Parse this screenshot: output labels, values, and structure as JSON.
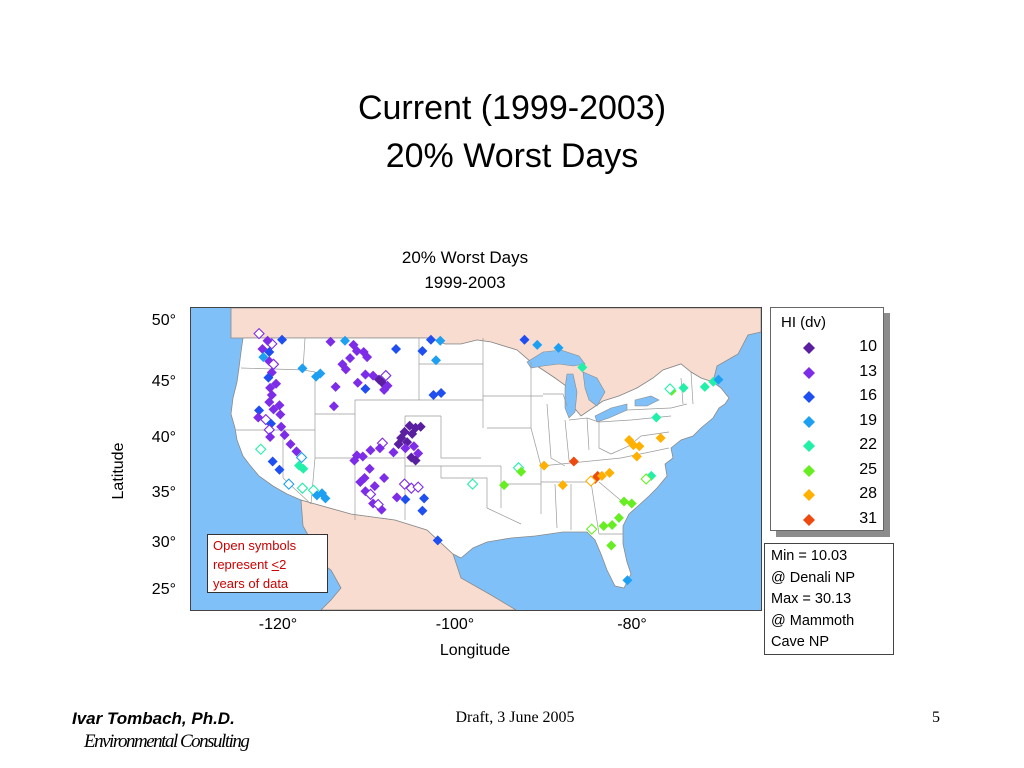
{
  "slide": {
    "title_line1": "Current (1999-2003)",
    "title_line2": "20% Worst Days"
  },
  "chart_data": {
    "type": "scatter",
    "title": "20% Worst Days",
    "subtitle": "1999-2003",
    "xlabel": "Longitude",
    "ylabel": "Latitude",
    "xlim": [
      -132,
      -65
    ],
    "ylim": [
      22.5,
      52
    ],
    "x_ticks": [
      {
        "value": -120,
        "label": "-120°"
      },
      {
        "value": -100,
        "label": "-100°"
      },
      {
        "value": -80,
        "label": "-80°"
      }
    ],
    "y_ticks": [
      {
        "value": 50,
        "label": "50°"
      },
      {
        "value": 45,
        "label": "45°"
      },
      {
        "value": 40,
        "label": "40°"
      },
      {
        "value": 35,
        "label": "35°"
      },
      {
        "value": 30,
        "label": "30°"
      },
      {
        "value": 25,
        "label": "25°"
      }
    ],
    "legend": {
      "title": "HI (dv)",
      "placement": "right",
      "bins": [
        {
          "label": "10",
          "value": 10,
          "color": "#5a1fa0"
        },
        {
          "label": "13",
          "value": 13,
          "color": "#7d2ce8"
        },
        {
          "label": "16",
          "value": 16,
          "color": "#1f4ff0"
        },
        {
          "label": "19",
          "value": 19,
          "color": "#1ea0f2"
        },
        {
          "label": "22",
          "value": 22,
          "color": "#22f0a8"
        },
        {
          "label": "25",
          "value": 25,
          "color": "#66ee22"
        },
        {
          "label": "28",
          "value": 28,
          "color": "#ffb000"
        },
        {
          "label": "31",
          "value": 31,
          "color": "#ee4a10"
        }
      ]
    },
    "points": [
      {
        "lon": -124.0,
        "lat": 49.5,
        "hi": 13,
        "open": true
      },
      {
        "lon": -122.5,
        "lat": 48.5,
        "hi": 13,
        "open": true
      },
      {
        "lon": -121.3,
        "lat": 48.9,
        "hi": 16
      },
      {
        "lon": -123.0,
        "lat": 48.8,
        "hi": 13
      },
      {
        "lon": -123.6,
        "lat": 48.0,
        "hi": 13
      },
      {
        "lon": -122.8,
        "lat": 47.7,
        "hi": 16
      },
      {
        "lon": -123.5,
        "lat": 47.2,
        "hi": 19
      },
      {
        "lon": -122.8,
        "lat": 46.8,
        "hi": 13
      },
      {
        "lon": -122.3,
        "lat": 46.5,
        "hi": 13,
        "open": true
      },
      {
        "lon": -122.5,
        "lat": 45.7,
        "hi": 13
      },
      {
        "lon": -122.9,
        "lat": 45.2,
        "hi": 16
      },
      {
        "lon": -122.0,
        "lat": 44.6,
        "hi": 13
      },
      {
        "lon": -122.7,
        "lat": 44.2,
        "hi": 13
      },
      {
        "lon": -122.5,
        "lat": 43.5,
        "hi": 13
      },
      {
        "lon": -122.8,
        "lat": 42.8,
        "hi": 13
      },
      {
        "lon": -121.6,
        "lat": 42.5,
        "hi": 13
      },
      {
        "lon": -122.3,
        "lat": 42.1,
        "hi": 13
      },
      {
        "lon": -121.5,
        "lat": 41.6,
        "hi": 13
      },
      {
        "lon": -124.0,
        "lat": 42.0,
        "hi": 16
      },
      {
        "lon": -124.1,
        "lat": 41.3,
        "hi": 13
      },
      {
        "lon": -123.2,
        "lat": 41.1,
        "hi": 13,
        "open": true
      },
      {
        "lon": -122.6,
        "lat": 40.7,
        "hi": 16
      },
      {
        "lon": -122.8,
        "lat": 40.1,
        "hi": 13,
        "open": true
      },
      {
        "lon": -121.4,
        "lat": 40.4,
        "hi": 13
      },
      {
        "lon": -122.7,
        "lat": 39.4,
        "hi": 13
      },
      {
        "lon": -121.0,
        "lat": 39.6,
        "hi": 13
      },
      {
        "lon": -120.3,
        "lat": 38.7,
        "hi": 13
      },
      {
        "lon": -119.6,
        "lat": 38.0,
        "hi": 13
      },
      {
        "lon": -119.0,
        "lat": 37.4,
        "hi": 19,
        "open": true
      },
      {
        "lon": -123.8,
        "lat": 38.2,
        "hi": 22,
        "open": true
      },
      {
        "lon": -122.4,
        "lat": 37.0,
        "hi": 16
      },
      {
        "lon": -121.6,
        "lat": 36.2,
        "hi": 16
      },
      {
        "lon": -119.3,
        "lat": 36.6,
        "hi": 22
      },
      {
        "lon": -118.8,
        "lat": 36.3,
        "hi": 22
      },
      {
        "lon": -120.5,
        "lat": 34.8,
        "hi": 19,
        "open": true
      },
      {
        "lon": -118.9,
        "lat": 34.4,
        "hi": 22,
        "open": true
      },
      {
        "lon": -117.6,
        "lat": 34.2,
        "hi": 22,
        "open": true
      },
      {
        "lon": -117.2,
        "lat": 33.7,
        "hi": 19
      },
      {
        "lon": -116.6,
        "lat": 33.9,
        "hi": 19
      },
      {
        "lon": -116.2,
        "lat": 33.4,
        "hi": 19
      },
      {
        "lon": -118.9,
        "lat": 46.1,
        "hi": 19
      },
      {
        "lon": -117.3,
        "lat": 45.3,
        "hi": 19
      },
      {
        "lon": -116.8,
        "lat": 45.6,
        "hi": 19
      },
      {
        "lon": -115.6,
        "lat": 48.7,
        "hi": 13
      },
      {
        "lon": -113.9,
        "lat": 48.8,
        "hi": 19
      },
      {
        "lon": -112.9,
        "lat": 48.4,
        "hi": 13
      },
      {
        "lon": -112.5,
        "lat": 47.8,
        "hi": 13
      },
      {
        "lon": -111.7,
        "lat": 47.7,
        "hi": 13
      },
      {
        "lon": -113.3,
        "lat": 47.1,
        "hi": 13
      },
      {
        "lon": -111.3,
        "lat": 47.2,
        "hi": 13
      },
      {
        "lon": -114.2,
        "lat": 46.5,
        "hi": 13
      },
      {
        "lon": -113.8,
        "lat": 46.0,
        "hi": 13
      },
      {
        "lon": -111.5,
        "lat": 45.5,
        "hi": 13
      },
      {
        "lon": -110.6,
        "lat": 45.4,
        "hi": 13
      },
      {
        "lon": -109.9,
        "lat": 45.0,
        "hi": 10
      },
      {
        "lon": -109.5,
        "lat": 44.7,
        "hi": 10
      },
      {
        "lon": -109.1,
        "lat": 45.4,
        "hi": 13,
        "open": true
      },
      {
        "lon": -108.9,
        "lat": 44.4,
        "hi": 13
      },
      {
        "lon": -109.3,
        "lat": 44.0,
        "hi": 13
      },
      {
        "lon": -112.4,
        "lat": 44.7,
        "hi": 13
      },
      {
        "lon": -111.5,
        "lat": 44.1,
        "hi": 16
      },
      {
        "lon": -115.0,
        "lat": 44.3,
        "hi": 13
      },
      {
        "lon": -115.2,
        "lat": 42.4,
        "hi": 13
      },
      {
        "lon": -103.8,
        "lat": 48.9,
        "hi": 16
      },
      {
        "lon": -102.7,
        "lat": 48.8,
        "hi": 19
      },
      {
        "lon": -104.8,
        "lat": 47.8,
        "hi": 16
      },
      {
        "lon": -107.9,
        "lat": 48.0,
        "hi": 16
      },
      {
        "lon": -103.2,
        "lat": 46.9,
        "hi": 19
      },
      {
        "lon": -103.5,
        "lat": 43.5,
        "hi": 16
      },
      {
        "lon": -102.6,
        "lat": 43.7,
        "hi": 16
      },
      {
        "lon": -106.3,
        "lat": 40.5,
        "hi": 10
      },
      {
        "lon": -105.6,
        "lat": 40.3,
        "hi": 10
      },
      {
        "lon": -105.0,
        "lat": 40.4,
        "hi": 10
      },
      {
        "lon": -106.9,
        "lat": 39.9,
        "hi": 10
      },
      {
        "lon": -106.0,
        "lat": 39.7,
        "hi": 10
      },
      {
        "lon": -107.3,
        "lat": 39.3,
        "hi": 10
      },
      {
        "lon": -106.6,
        "lat": 38.9,
        "hi": 10
      },
      {
        "lon": -107.6,
        "lat": 38.7,
        "hi": 10
      },
      {
        "lon": -105.8,
        "lat": 38.5,
        "hi": 13
      },
      {
        "lon": -106.8,
        "lat": 38.3,
        "hi": 13
      },
      {
        "lon": -105.3,
        "lat": 37.8,
        "hi": 13
      },
      {
        "lon": -108.2,
        "lat": 37.9,
        "hi": 13
      },
      {
        "lon": -106.1,
        "lat": 37.4,
        "hi": 10
      },
      {
        "lon": -105.6,
        "lat": 37.1,
        "hi": 10
      },
      {
        "lon": -109.5,
        "lat": 38.8,
        "hi": 13,
        "open": true
      },
      {
        "lon": -109.8,
        "lat": 38.3,
        "hi": 13
      },
      {
        "lon": -110.9,
        "lat": 38.1,
        "hi": 13
      },
      {
        "lon": -111.8,
        "lat": 37.5,
        "hi": 13
      },
      {
        "lon": -112.5,
        "lat": 37.6,
        "hi": 13
      },
      {
        "lon": -112.8,
        "lat": 37.1,
        "hi": 13
      },
      {
        "lon": -111.0,
        "lat": 36.3,
        "hi": 13
      },
      {
        "lon": -111.6,
        "lat": 35.4,
        "hi": 13
      },
      {
        "lon": -112.1,
        "lat": 35.0,
        "hi": 13
      },
      {
        "lon": -110.4,
        "lat": 34.6,
        "hi": 13
      },
      {
        "lon": -109.3,
        "lat": 35.4,
        "hi": 13
      },
      {
        "lon": -111.5,
        "lat": 34.1,
        "hi": 13
      },
      {
        "lon": -110.9,
        "lat": 33.8,
        "hi": 13,
        "open": true
      },
      {
        "lon": -110.6,
        "lat": 32.9,
        "hi": 13
      },
      {
        "lon": -109.6,
        "lat": 32.3,
        "hi": 13
      },
      {
        "lon": -110.0,
        "lat": 32.8,
        "hi": 13,
        "open": true
      },
      {
        "lon": -107.8,
        "lat": 33.5,
        "hi": 13
      },
      {
        "lon": -106.8,
        "lat": 33.3,
        "hi": 16
      },
      {
        "lon": -106.9,
        "lat": 34.8,
        "hi": 13,
        "open": true
      },
      {
        "lon": -106.1,
        "lat": 34.4,
        "hi": 13,
        "open": true
      },
      {
        "lon": -105.3,
        "lat": 34.5,
        "hi": 13,
        "open": true
      },
      {
        "lon": -104.6,
        "lat": 33.4,
        "hi": 16
      },
      {
        "lon": -104.8,
        "lat": 32.2,
        "hi": 16
      },
      {
        "lon": -103.0,
        "lat": 29.3,
        "hi": 16
      },
      {
        "lon": -98.9,
        "lat": 34.8,
        "hi": 22,
        "open": true
      },
      {
        "lon": -95.2,
        "lat": 34.7,
        "hi": 25
      },
      {
        "lon": -93.5,
        "lat": 36.4,
        "hi": 22,
        "open": true
      },
      {
        "lon": -93.2,
        "lat": 36.0,
        "hi": 25
      },
      {
        "lon": -92.8,
        "lat": 48.9,
        "hi": 16
      },
      {
        "lon": -91.3,
        "lat": 48.4,
        "hi": 19
      },
      {
        "lon": -88.8,
        "lat": 48.1,
        "hi": 19
      },
      {
        "lon": -86.0,
        "lat": 46.2,
        "hi": 22
      },
      {
        "lon": -90.5,
        "lat": 36.6,
        "hi": 28
      },
      {
        "lon": -87.0,
        "lat": 37.0,
        "hi": 31
      },
      {
        "lon": -88.3,
        "lat": 34.7,
        "hi": 28
      },
      {
        "lon": -84.5,
        "lat": 35.3,
        "hi": 31
      },
      {
        "lon": -84.2,
        "lat": 35.6,
        "hi": 31
      },
      {
        "lon": -83.7,
        "lat": 35.6,
        "hi": 28
      },
      {
        "lon": -82.8,
        "lat": 35.9,
        "hi": 28
      },
      {
        "lon": -85.0,
        "lat": 35.1,
        "hi": 28,
        "open": true
      },
      {
        "lon": -80.5,
        "lat": 39.1,
        "hi": 28
      },
      {
        "lon": -80.0,
        "lat": 38.6,
        "hi": 28
      },
      {
        "lon": -79.3,
        "lat": 38.5,
        "hi": 28
      },
      {
        "lon": -79.6,
        "lat": 37.5,
        "hi": 28
      },
      {
        "lon": -76.8,
        "lat": 39.3,
        "hi": 28
      },
      {
        "lon": -77.3,
        "lat": 41.3,
        "hi": 22
      },
      {
        "lon": -75.5,
        "lat": 43.9,
        "hi": 25
      },
      {
        "lon": -74.1,
        "lat": 44.2,
        "hi": 22
      },
      {
        "lon": -75.7,
        "lat": 44.1,
        "hi": 22,
        "open": true
      },
      {
        "lon": -71.6,
        "lat": 44.3,
        "hi": 22
      },
      {
        "lon": -70.6,
        "lat": 44.8,
        "hi": 22
      },
      {
        "lon": -70.0,
        "lat": 45.0,
        "hi": 19
      },
      {
        "lon": -77.9,
        "lat": 35.6,
        "hi": 22
      },
      {
        "lon": -78.5,
        "lat": 35.3,
        "hi": 25,
        "open": true
      },
      {
        "lon": -81.1,
        "lat": 33.1,
        "hi": 25
      },
      {
        "lon": -80.2,
        "lat": 32.9,
        "hi": 25
      },
      {
        "lon": -81.7,
        "lat": 31.5,
        "hi": 25
      },
      {
        "lon": -82.5,
        "lat": 30.8,
        "hi": 25
      },
      {
        "lon": -83.5,
        "lat": 30.7,
        "hi": 25
      },
      {
        "lon": -84.9,
        "lat": 30.4,
        "hi": 25,
        "open": true
      },
      {
        "lon": -82.6,
        "lat": 28.8,
        "hi": 25
      },
      {
        "lon": -80.7,
        "lat": 25.4,
        "hi": 19
      }
    ]
  },
  "legend_box": {
    "title": "HI (dv)"
  },
  "stats": {
    "line1": "Min = 10.03",
    "line2": "@ Denali NP",
    "line3": "Max = 30.13",
    "line4": "@ Mammoth",
    "line5": "Cave NP"
  },
  "note": {
    "line1": "Open symbols",
    "line2_prefix": "represent ",
    "line2_underlined": "<",
    "line2_suffix": "2",
    "line3": "years of data"
  },
  "footer": {
    "author": "Ivar Tombach, Ph.D.",
    "org": "Environmental Consulting",
    "draft": "Draft, 3 June 2005",
    "page": "5"
  },
  "colors": {
    "ocean": "#80c0f8",
    "land_outside_us": "#f8dcd0",
    "us_land": "#ffffff",
    "note_text": "#cc0000"
  }
}
